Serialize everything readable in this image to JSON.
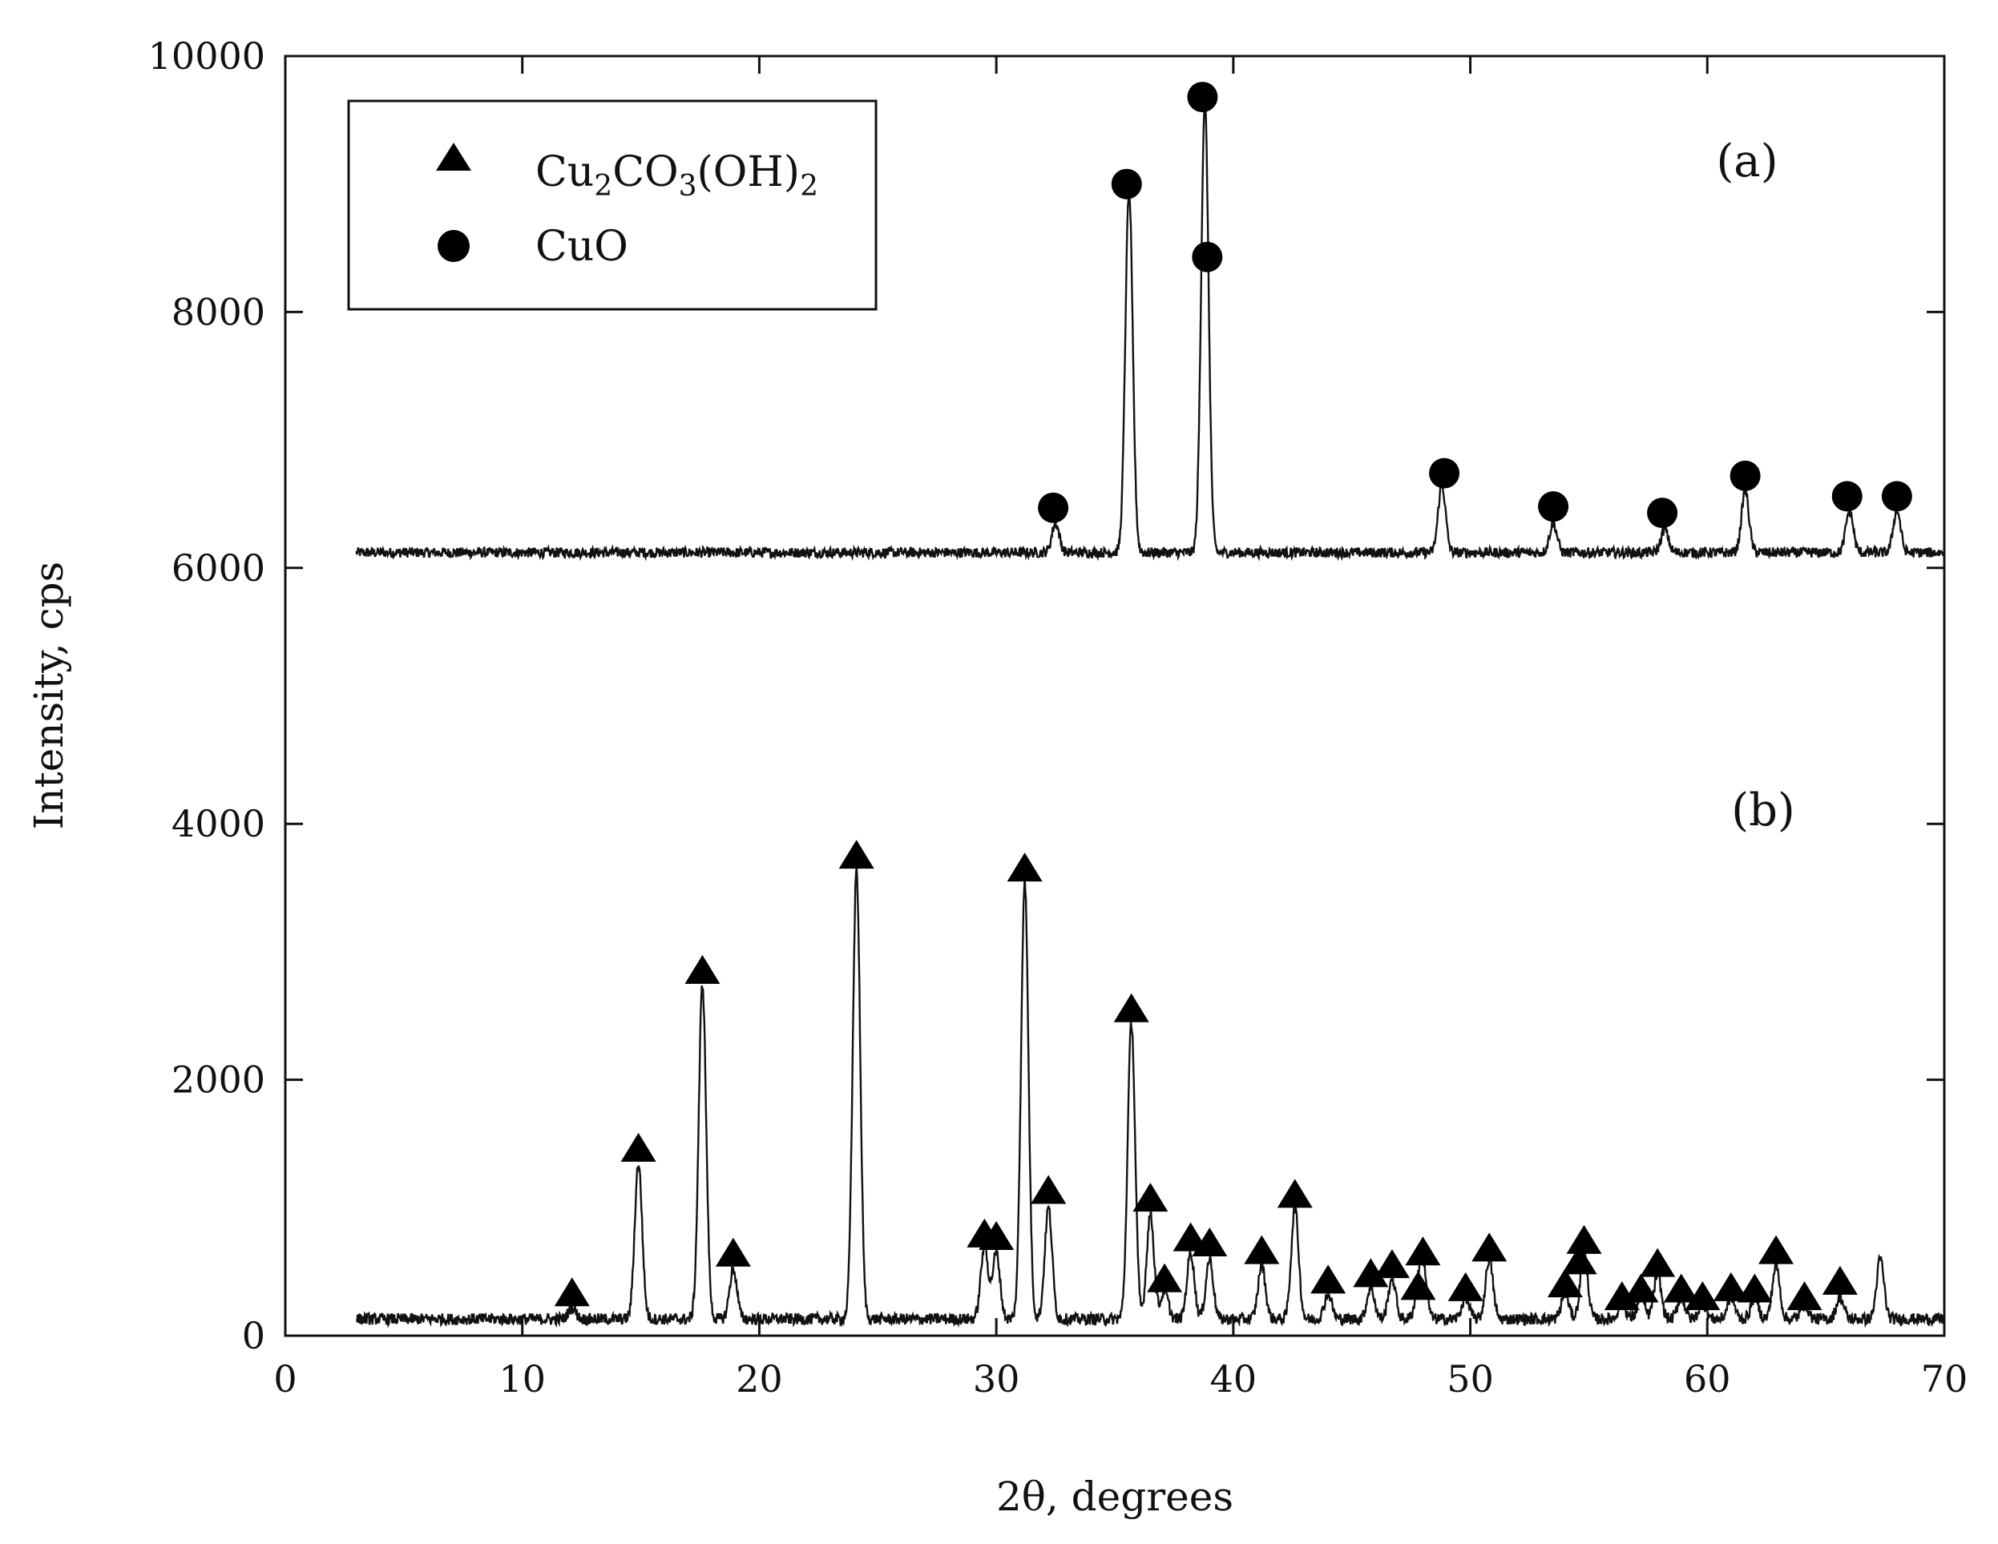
{
  "chart_data": {
    "type": "line",
    "xlabel": "2θ, degrees",
    "ylabel": "Intensity, cps",
    "xlim": [
      0,
      70
    ],
    "ylim": [
      0,
      10000
    ],
    "x_ticks": [
      0,
      10,
      20,
      30,
      40,
      50,
      60,
      70
    ],
    "y_ticks": [
      0,
      2000,
      4000,
      6000,
      8000,
      10000
    ],
    "grid": false,
    "legend_position": "top-left",
    "legend": [
      {
        "marker": "triangle",
        "base": "Cu",
        "sub1": "2",
        "mid": "CO",
        "sub2": "3",
        "tail": "(OH)",
        "sub3": "2"
      },
      {
        "marker": "circle",
        "label": "CuO"
      }
    ],
    "panel_labels": {
      "a": "(a)",
      "b": "(b)"
    },
    "series": [
      {
        "panel": "(a)",
        "x_start": 3,
        "x_end": 70,
        "baseline": 6120,
        "noise": 40,
        "peaks": [
          {
            "x": 32.5,
            "y": 6350
          },
          {
            "x": 35.6,
            "y": 8950
          },
          {
            "x": 38.8,
            "y": 9650
          },
          {
            "x": 48.8,
            "y": 6650
          },
          {
            "x": 53.5,
            "y": 6350
          },
          {
            "x": 58.2,
            "y": 6300
          },
          {
            "x": 61.6,
            "y": 6600
          },
          {
            "x": 66.0,
            "y": 6450
          },
          {
            "x": 68.0,
            "y": 6450
          }
        ],
        "markers": [
          {
            "x": 32.4,
            "y": 6470,
            "marker": "circle"
          },
          {
            "x": 35.5,
            "y": 9000,
            "marker": "circle"
          },
          {
            "x": 38.7,
            "y": 9680,
            "marker": "circle"
          },
          {
            "x": 38.9,
            "y": 8430,
            "marker": "circle"
          },
          {
            "x": 48.9,
            "y": 6740,
            "marker": "circle"
          },
          {
            "x": 53.5,
            "y": 6480,
            "marker": "circle"
          },
          {
            "x": 58.1,
            "y": 6430,
            "marker": "circle"
          },
          {
            "x": 61.6,
            "y": 6720,
            "marker": "circle"
          },
          {
            "x": 65.9,
            "y": 6560,
            "marker": "circle"
          },
          {
            "x": 68.0,
            "y": 6560,
            "marker": "circle"
          }
        ]
      },
      {
        "panel": "(b)",
        "x_start": 3,
        "x_end": 70,
        "baseline": 130,
        "noise": 45,
        "peaks": [
          {
            "x": 12.1,
            "y": 220
          },
          {
            "x": 14.9,
            "y": 1350
          },
          {
            "x": 17.6,
            "y": 2750
          },
          {
            "x": 18.9,
            "y": 520
          },
          {
            "x": 24.1,
            "y": 3650
          },
          {
            "x": 29.5,
            "y": 700
          },
          {
            "x": 30.0,
            "y": 650
          },
          {
            "x": 31.2,
            "y": 3550
          },
          {
            "x": 32.2,
            "y": 1000
          },
          {
            "x": 35.7,
            "y": 2450
          },
          {
            "x": 36.5,
            "y": 950
          },
          {
            "x": 37.1,
            "y": 350
          },
          {
            "x": 38.2,
            "y": 650
          },
          {
            "x": 39.0,
            "y": 600
          },
          {
            "x": 41.2,
            "y": 550
          },
          {
            "x": 42.6,
            "y": 1000
          },
          {
            "x": 44.0,
            "y": 330
          },
          {
            "x": 45.8,
            "y": 380
          },
          {
            "x": 46.7,
            "y": 450
          },
          {
            "x": 47.8,
            "y": 300
          },
          {
            "x": 48.0,
            "y": 550
          },
          {
            "x": 49.8,
            "y": 300
          },
          {
            "x": 50.8,
            "y": 600
          },
          {
            "x": 54.0,
            "y": 330
          },
          {
            "x": 54.8,
            "y": 650
          },
          {
            "x": 56.4,
            "y": 250
          },
          {
            "x": 57.2,
            "y": 300
          },
          {
            "x": 57.9,
            "y": 480
          },
          {
            "x": 58.9,
            "y": 300
          },
          {
            "x": 59.8,
            "y": 250
          },
          {
            "x": 61.0,
            "y": 300
          },
          {
            "x": 62.0,
            "y": 300
          },
          {
            "x": 62.9,
            "y": 550
          },
          {
            "x": 64.1,
            "y": 250
          },
          {
            "x": 65.6,
            "y": 300
          },
          {
            "x": 67.3,
            "y": 600
          }
        ],
        "markers": [
          {
            "x": 12.1,
            "y": 330,
            "marker": "triangle"
          },
          {
            "x": 14.9,
            "y": 1460,
            "marker": "triangle"
          },
          {
            "x": 17.6,
            "y": 2850,
            "marker": "triangle"
          },
          {
            "x": 18.9,
            "y": 640,
            "marker": "triangle"
          },
          {
            "x": 24.1,
            "y": 3750,
            "marker": "triangle"
          },
          {
            "x": 29.5,
            "y": 790,
            "marker": "triangle"
          },
          {
            "x": 30.0,
            "y": 770,
            "marker": "triangle"
          },
          {
            "x": 31.2,
            "y": 3650,
            "marker": "triangle"
          },
          {
            "x": 32.2,
            "y": 1130,
            "marker": "triangle"
          },
          {
            "x": 35.7,
            "y": 2550,
            "marker": "triangle"
          },
          {
            "x": 36.5,
            "y": 1070,
            "marker": "triangle"
          },
          {
            "x": 37.1,
            "y": 440,
            "marker": "triangle"
          },
          {
            "x": 38.2,
            "y": 760,
            "marker": "triangle"
          },
          {
            "x": 39.0,
            "y": 720,
            "marker": "triangle"
          },
          {
            "x": 41.2,
            "y": 660,
            "marker": "triangle"
          },
          {
            "x": 42.6,
            "y": 1100,
            "marker": "triangle"
          },
          {
            "x": 44.0,
            "y": 430,
            "marker": "triangle"
          },
          {
            "x": 45.8,
            "y": 480,
            "marker": "triangle"
          },
          {
            "x": 46.7,
            "y": 550,
            "marker": "triangle"
          },
          {
            "x": 47.8,
            "y": 380,
            "marker": "triangle"
          },
          {
            "x": 48.0,
            "y": 650,
            "marker": "triangle"
          },
          {
            "x": 49.8,
            "y": 370,
            "marker": "triangle"
          },
          {
            "x": 50.8,
            "y": 680,
            "marker": "triangle"
          },
          {
            "x": 54.0,
            "y": 400,
            "marker": "triangle"
          },
          {
            "x": 54.6,
            "y": 580,
            "marker": "triangle"
          },
          {
            "x": 54.8,
            "y": 740,
            "marker": "triangle"
          },
          {
            "x": 56.4,
            "y": 300,
            "marker": "triangle"
          },
          {
            "x": 57.2,
            "y": 360,
            "marker": "triangle"
          },
          {
            "x": 57.9,
            "y": 560,
            "marker": "triangle"
          },
          {
            "x": 58.9,
            "y": 360,
            "marker": "triangle"
          },
          {
            "x": 59.8,
            "y": 300,
            "marker": "triangle"
          },
          {
            "x": 61.0,
            "y": 370,
            "marker": "triangle"
          },
          {
            "x": 62.0,
            "y": 360,
            "marker": "triangle"
          },
          {
            "x": 62.9,
            "y": 660,
            "marker": "triangle"
          },
          {
            "x": 64.1,
            "y": 300,
            "marker": "triangle"
          },
          {
            "x": 65.6,
            "y": 420,
            "marker": "triangle"
          }
        ]
      }
    ]
  }
}
